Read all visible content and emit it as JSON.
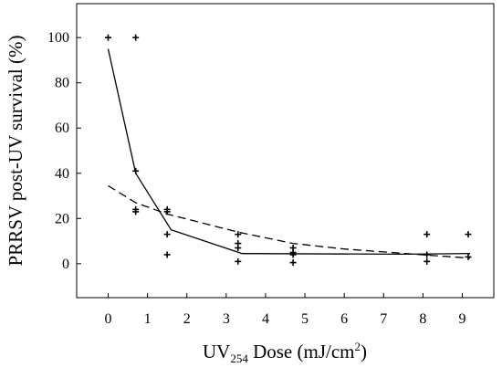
{
  "chart_data": {
    "type": "scatter",
    "title": "",
    "xlabel": {
      "base": "UV",
      "sub": "254",
      "middle": " Dose (mJ/cm",
      "sup": "2",
      "end": ")"
    },
    "ylabel": "PRRSV post-UV survival (%)",
    "xlim": [
      -0.8,
      9.8
    ],
    "ylim": [
      -15,
      115
    ],
    "xticks": [
      0,
      1,
      2,
      3,
      4,
      5,
      6,
      7,
      8,
      9
    ],
    "yticks": [
      0,
      20,
      40,
      60,
      80,
      100
    ],
    "xtick_labels": [
      "0",
      "1",
      "2",
      "3",
      "4",
      "5",
      "6",
      "7",
      "8",
      "9"
    ],
    "ytick_labels": [
      "0",
      "20",
      "40",
      "60",
      "80",
      "100"
    ],
    "grid": false,
    "series": [
      {
        "kind": "points",
        "marker": "plus",
        "color": "#000000",
        "x": [
          0,
          0.7,
          0.7,
          0.7,
          0.7,
          1.5,
          1.5,
          1.5,
          1.5,
          3.3,
          3.3,
          3.3,
          3.3,
          4.7,
          4.7,
          4.7,
          4.7,
          8.1,
          8.1,
          8.1,
          9.15,
          9.15
        ],
        "y": [
          100,
          100,
          41,
          24,
          23,
          24,
          23,
          13,
          4,
          13,
          9,
          7,
          1,
          7,
          5,
          4,
          0.5,
          13,
          4,
          1,
          13,
          3
        ]
      },
      {
        "kind": "solid-line",
        "color": "#000000",
        "x": [
          0,
          0.7,
          1.6,
          3.4,
          7.5,
          9.2
        ],
        "y": [
          95,
          40,
          15,
          4.5,
          4.2,
          4.5
        ]
      },
      {
        "kind": "dashed-line",
        "color": "#000000",
        "x": [
          0,
          0.7,
          1.5,
          3.3,
          4.7,
          6.0,
          8.1,
          9.2
        ],
        "y": [
          34.5,
          27,
          22,
          14,
          9,
          6.5,
          3.8,
          2.5
        ]
      }
    ]
  }
}
